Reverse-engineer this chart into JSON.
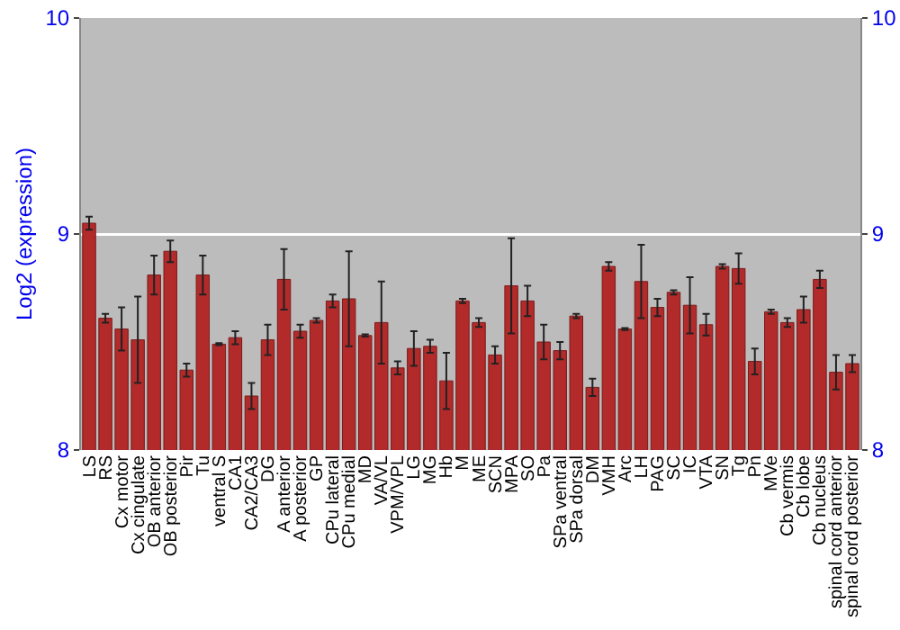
{
  "chart_data": {
    "type": "bar",
    "ylabel": "Log2 (expression)",
    "categories": [
      "LS",
      "RS",
      "Cx motor",
      "Cx cingulate",
      "OB anterior",
      "OB posterior",
      "Pir",
      "Tu",
      "ventral S",
      "CA1",
      "CA2/CA3",
      "DG",
      "A anterior",
      "A posterior",
      "GP",
      "CPu lateral",
      "CPu medial",
      "MD",
      "VA/VL",
      "VPM/VPL",
      "LG",
      "MG",
      "Hb",
      "M",
      "ME",
      "SCN",
      "MPA",
      "SO",
      "Pa",
      "SPa ventral",
      "SPa dorsal",
      "DM",
      "VMH",
      "Arc",
      "LH",
      "PAG",
      "SC",
      "IC",
      "VTA",
      "SN",
      "Tg",
      "Pn",
      "MVe",
      "Cb vermis",
      "Cb lobe",
      "Cb nucleus",
      "spinal cord anterior",
      "spinal cord posterior"
    ],
    "values": [
      9.05,
      8.61,
      8.56,
      8.51,
      8.81,
      8.92,
      8.37,
      8.81,
      8.49,
      8.52,
      8.25,
      8.51,
      8.79,
      8.55,
      8.6,
      8.69,
      8.7,
      8.53,
      8.59,
      8.38,
      8.47,
      8.48,
      8.32,
      8.69,
      8.59,
      8.44,
      8.76,
      8.69,
      8.5,
      8.46,
      8.62,
      8.29,
      8.85,
      8.56,
      8.78,
      8.66,
      8.73,
      8.67,
      8.58,
      8.85,
      8.84,
      8.41,
      8.64,
      8.59,
      8.65,
      8.79,
      8.36,
      8.4
    ],
    "errors": [
      0.03,
      0.02,
      0.1,
      0.2,
      0.09,
      0.05,
      0.03,
      0.09,
      0.005,
      0.03,
      0.06,
      0.07,
      0.14,
      0.03,
      0.01,
      0.03,
      0.22,
      0.005,
      0.19,
      0.03,
      0.08,
      0.03,
      0.13,
      0.01,
      0.02,
      0.04,
      0.22,
      0.07,
      0.08,
      0.04,
      0.01,
      0.04,
      0.02,
      0.005,
      0.17,
      0.04,
      0.01,
      0.13,
      0.05,
      0.01,
      0.07,
      0.06,
      0.01,
      0.02,
      0.06,
      0.04,
      0.08,
      0.04
    ],
    "color": "#b22a2a",
    "ylim": [
      8,
      10
    ],
    "yticks": [
      8,
      9,
      10
    ],
    "y2lim": [
      8,
      10
    ],
    "y2ticks": [
      8,
      9,
      10
    ],
    "grid": "y"
  }
}
